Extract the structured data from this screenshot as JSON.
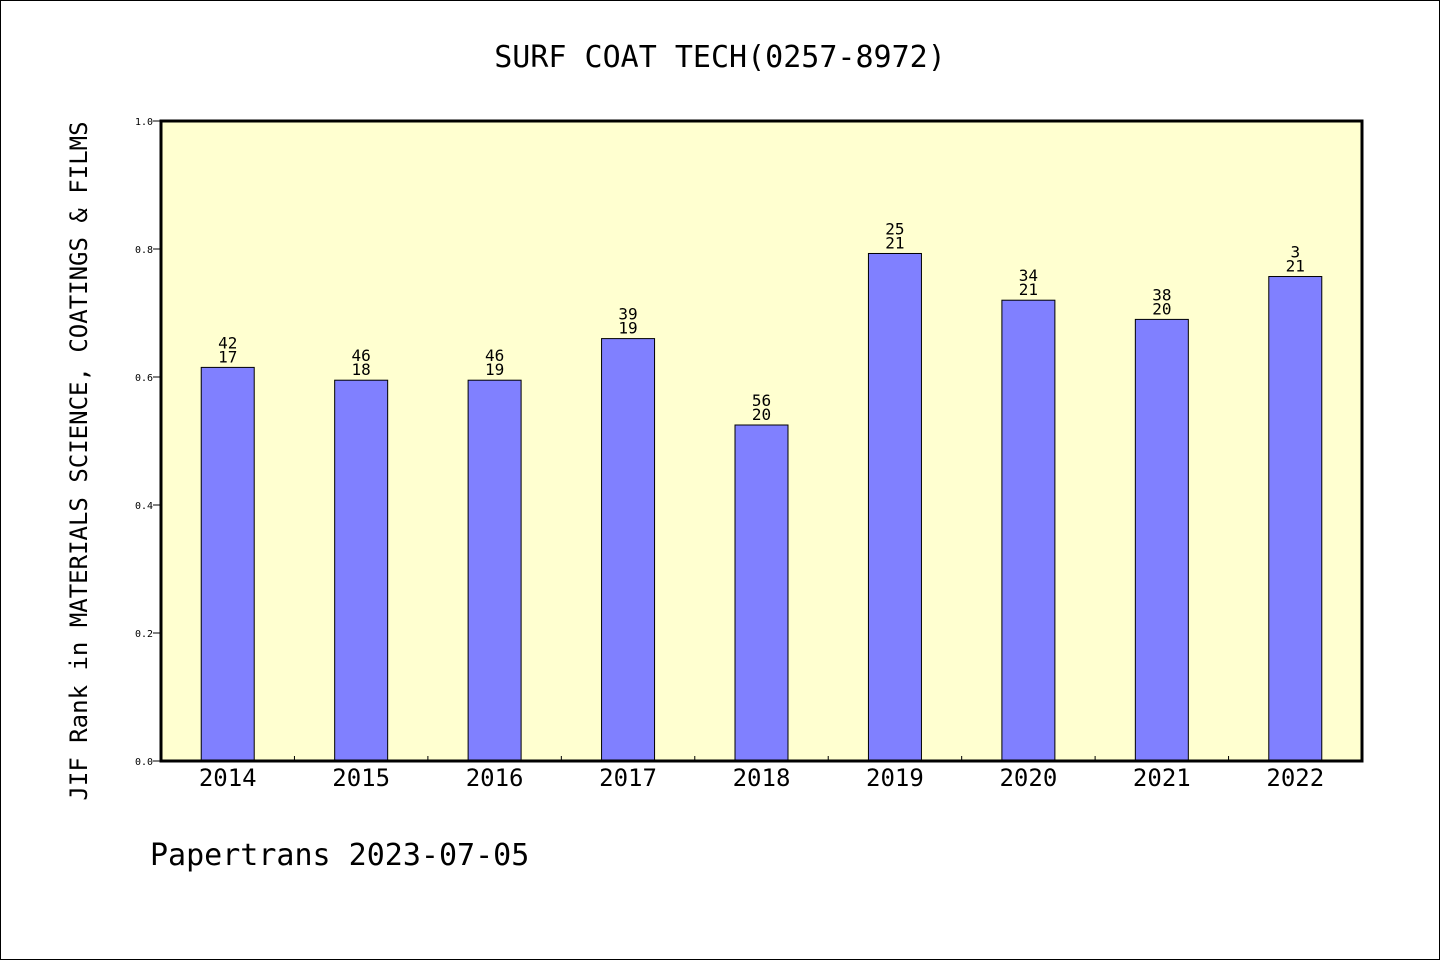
{
  "chart_data": {
    "type": "bar",
    "title": "SURF COAT TECH(0257-8972)",
    "xlabel": "",
    "ylabel": "JIF Rank in MATERIALS SCIENCE, COATINGS & FILMS",
    "categories": [
      "2014",
      "2015",
      "2016",
      "2017",
      "2018",
      "2019",
      "2020",
      "2021",
      "2022"
    ],
    "values": [
      0.615,
      0.595,
      0.595,
      0.66,
      0.525,
      0.793,
      0.72,
      0.69,
      0.757
    ],
    "bar_labels_top": [
      "42",
      "46",
      "46",
      "39",
      "56",
      "25",
      "34",
      "38",
      "3"
    ],
    "bar_labels_bottom": [
      "17",
      "18",
      "19",
      "19",
      "20",
      "21",
      "21",
      "20",
      "21"
    ],
    "ylim": [
      0,
      1.0
    ],
    "yticks": [
      "0.0",
      "0.2",
      "0.4",
      "0.6",
      "0.8",
      "1.0"
    ],
    "ytick_values": [
      0,
      0.2,
      0.4,
      0.6,
      0.8,
      1.0
    ],
    "grid": false,
    "colors": {
      "plot_background": "#ffffd0",
      "bar_fill": "#8080ff",
      "bar_stroke": "#000000"
    }
  },
  "footer": {
    "text": "Papertrans 2023-07-05"
  }
}
